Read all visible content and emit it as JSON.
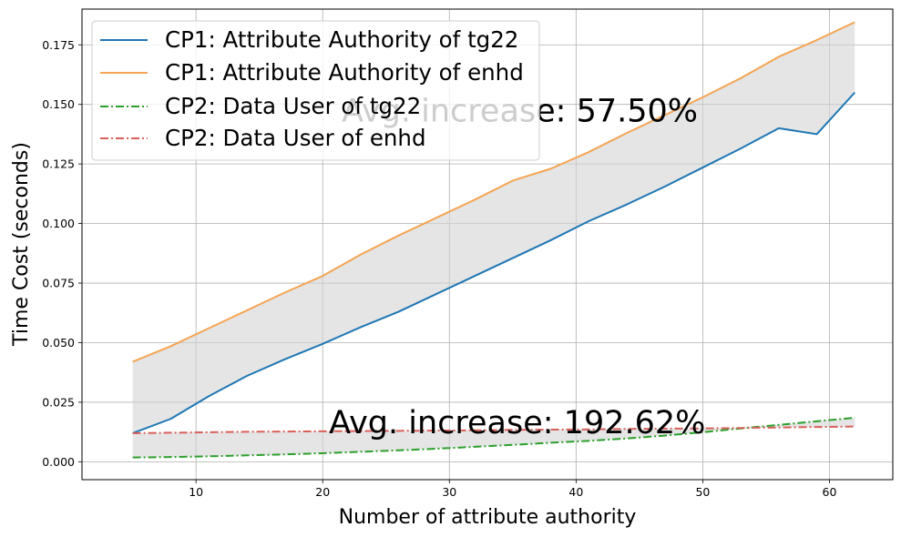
{
  "chart_data": {
    "type": "line",
    "xlabel": "Number of attribute authority",
    "ylabel": "Time Cost (seconds)",
    "xlim": [
      1,
      65
    ],
    "ylim": [
      -0.0075,
      0.19
    ],
    "xticks": [
      10,
      20,
      30,
      40,
      50,
      60
    ],
    "yticks": [
      0.0,
      0.025,
      0.05,
      0.075,
      0.1,
      0.125,
      0.15,
      0.175
    ],
    "ytick_labels": [
      "0.000",
      "0.025",
      "0.050",
      "0.075",
      "0.100",
      "0.125",
      "0.150",
      "0.175"
    ],
    "grid": true,
    "legend_position": "top-left",
    "series": [
      {
        "name": "CP1: Attribute Authority of tg22",
        "color": "#1f77b4",
        "linestyle": "solid",
        "x": [
          5,
          8,
          11,
          14,
          17,
          20,
          23,
          26,
          29,
          32,
          35,
          38,
          41,
          44,
          47,
          50,
          53,
          56,
          59,
          62
        ],
        "y": [
          0.012,
          0.018,
          0.0275,
          0.036,
          0.043,
          0.0495,
          0.0565,
          0.063,
          0.0705,
          0.078,
          0.0855,
          0.093,
          0.101,
          0.108,
          0.1155,
          0.1235,
          0.1315,
          0.14,
          0.1375,
          0.155
        ]
      },
      {
        "name": "CP1: Attribute Authority of enhd",
        "color": "#f5a453",
        "linestyle": "solid",
        "x": [
          5,
          8,
          11,
          14,
          17,
          20,
          23,
          26,
          29,
          32,
          35,
          38,
          41,
          44,
          47,
          50,
          53,
          56,
          59,
          62
        ],
        "y": [
          0.042,
          0.0485,
          0.056,
          0.0635,
          0.071,
          0.078,
          0.087,
          0.095,
          0.1025,
          0.11,
          0.118,
          0.123,
          0.13,
          0.138,
          0.1455,
          0.153,
          0.161,
          0.17,
          0.177,
          0.1845
        ]
      },
      {
        "name": "CP2: Data User of tg22",
        "color": "#2ca02c",
        "linestyle": "dashdot",
        "x": [
          5,
          8,
          11,
          14,
          17,
          20,
          23,
          26,
          29,
          32,
          35,
          38,
          41,
          44,
          47,
          50,
          53,
          56,
          59,
          62
        ],
        "y": [
          0.0018,
          0.002,
          0.0023,
          0.0027,
          0.0031,
          0.0036,
          0.0042,
          0.0048,
          0.0055,
          0.0063,
          0.0071,
          0.008,
          0.0088,
          0.0098,
          0.011,
          0.0124,
          0.014,
          0.0155,
          0.017,
          0.0185
        ]
      },
      {
        "name": "CP2: Data User of enhd",
        "color": "#d9605a",
        "linestyle": "dashdot",
        "x": [
          5,
          8,
          11,
          14,
          17,
          20,
          23,
          26,
          29,
          32,
          35,
          38,
          41,
          44,
          47,
          50,
          53,
          56,
          59,
          62
        ],
        "y": [
          0.012,
          0.0122,
          0.0124,
          0.0126,
          0.0127,
          0.0128,
          0.0129,
          0.013,
          0.0131,
          0.0132,
          0.0134,
          0.0135,
          0.0136,
          0.0138,
          0.0139,
          0.014,
          0.0142,
          0.0144,
          0.0146,
          0.0148
        ]
      }
    ],
    "shaded_regions": [
      {
        "between": [
          0,
          1
        ],
        "color": "#d3d3d3"
      },
      {
        "between": [
          2,
          3
        ],
        "color": "#d3d3d3"
      }
    ],
    "annotations": [
      {
        "text": "Avg. increase: 57.50%",
        "x": 21.5,
        "y": 0.1475
      },
      {
        "text": "Avg. increase: 192.62%",
        "x": 20.5,
        "y": 0.0165
      }
    ]
  }
}
